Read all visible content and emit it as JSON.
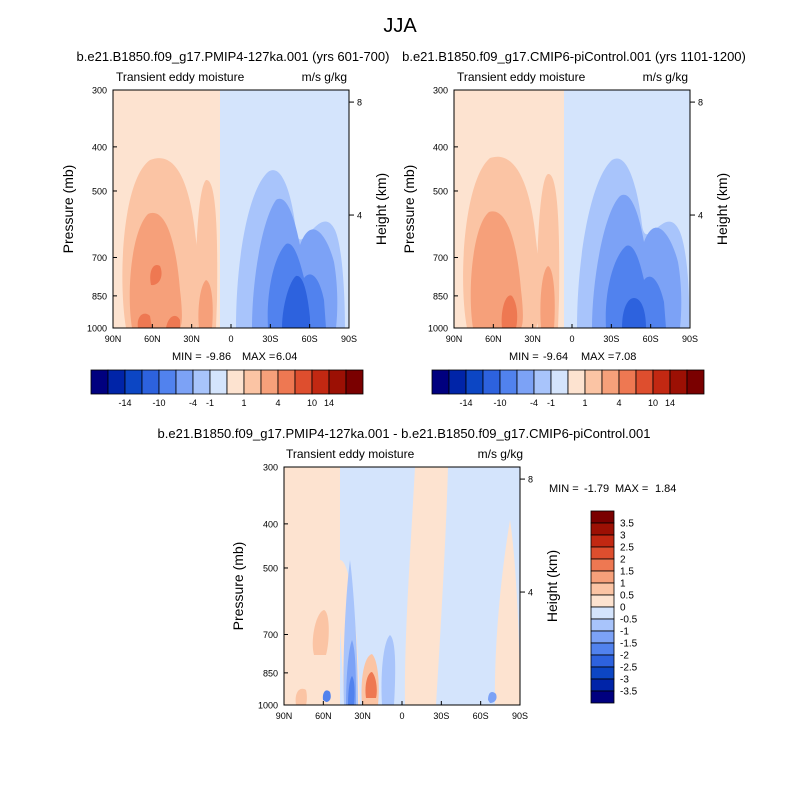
{
  "figure_title": "JJA",
  "colors": {
    "full_scale": [
      "#00007f",
      "#0024a8",
      "#0c46c4",
      "#2d62de",
      "#5182ee",
      "#7ca2f6",
      "#a8c4fb",
      "#d4e4fc",
      "#fde3d0",
      "#fbc4a4",
      "#f6a07a",
      "#ee7852",
      "#de4e2e",
      "#c22812",
      "#9c1004",
      "#7a0000"
    ],
    "diff_scale": [
      "#00007f",
      "#0024a8",
      "#0c46c4",
      "#2d62de",
      "#5182ee",
      "#7ca2f6",
      "#a8c4fb",
      "#d4e4fc",
      "#fde3d0",
      "#fbc4a4",
      "#f6a07a",
      "#ee7852",
      "#de4e2e",
      "#c22812",
      "#9c1004",
      "#7a0000"
    ]
  },
  "chart_data": [
    {
      "type": "heatmap",
      "title": "b.e21.B1850.f09_g17.PMIP4-127ka.001 (yrs 601-700)",
      "left_label": "Transient eddy moisture",
      "right_label": "m/s g/kg",
      "xlabel": "",
      "ylabel": "Pressure (mb)",
      "ylabel_right": "Height (km)",
      "x_ticks": [
        "90N",
        "60N",
        "30N",
        "0",
        "30S",
        "60S",
        "90S"
      ],
      "y_ticks": [
        "300",
        "400",
        "500",
        "700",
        "850",
        "1000"
      ],
      "y_ticks_right": [
        "8",
        "4"
      ],
      "min_label": "MIN =",
      "min": "-9.86",
      "max_label": "MAX =",
      "max": "6.04",
      "colorbar_ticks": [
        "-14",
        "-10",
        "-4",
        "-1",
        "1",
        "4",
        "10",
        "14"
      ]
    },
    {
      "type": "heatmap",
      "title": "b.e21.B1850.f09_g17.CMIP6-piControl.001 (yrs 1101-1200)",
      "left_label": "Transient eddy moisture",
      "right_label": "m/s g/kg",
      "xlabel": "",
      "ylabel": "Pressure (mb)",
      "ylabel_right": "Height (km)",
      "x_ticks": [
        "90N",
        "60N",
        "30N",
        "0",
        "30S",
        "60S",
        "90S"
      ],
      "y_ticks": [
        "300",
        "400",
        "500",
        "700",
        "850",
        "1000"
      ],
      "y_ticks_right": [
        "8",
        "4"
      ],
      "min_label": "MIN =",
      "min": "-9.64",
      "max_label": "MAX =",
      "max": "7.08",
      "colorbar_ticks": [
        "-14",
        "-10",
        "-4",
        "-1",
        "1",
        "4",
        "10",
        "14"
      ]
    },
    {
      "type": "heatmap",
      "title": "b.e21.B1850.f09_g17.PMIP4-127ka.001 - b.e21.B1850.f09_g17.CMIP6-piControl.001",
      "left_label": "Transient eddy moisture",
      "right_label": "m/s g/kg",
      "xlabel": "",
      "ylabel": "Pressure (mb)",
      "ylabel_right": "Height (km)",
      "x_ticks": [
        "90N",
        "60N",
        "30N",
        "0",
        "30S",
        "60S",
        "90S"
      ],
      "y_ticks": [
        "300",
        "400",
        "500",
        "700",
        "850",
        "1000"
      ],
      "y_ticks_right": [
        "8",
        "4"
      ],
      "min_label": "MIN =",
      "min": "-1.79",
      "max_label": "MAX =",
      "max": "1.84",
      "colorbar_ticks": [
        "3.5",
        "3",
        "2.5",
        "2",
        "1.5",
        "1",
        "0.5",
        "0",
        "-0.5",
        "-1",
        "-1.5",
        "-2",
        "-2.5",
        "-3",
        "-3.5"
      ]
    }
  ]
}
